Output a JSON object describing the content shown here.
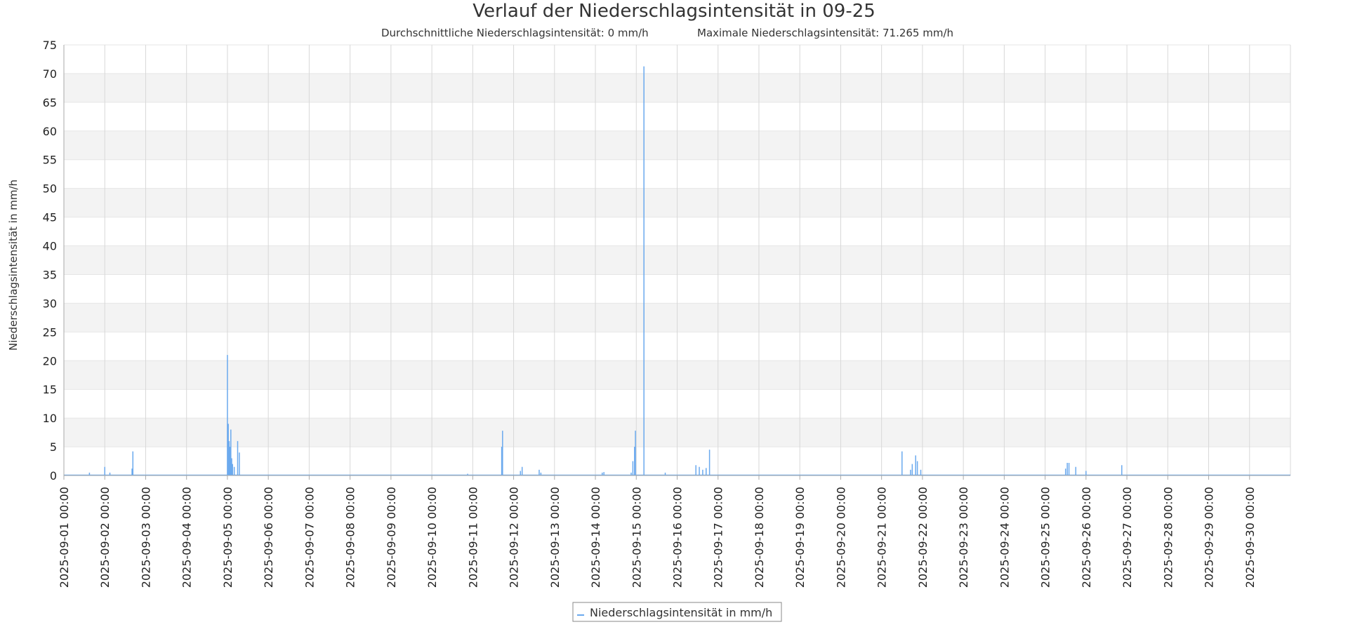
{
  "chart_data": {
    "type": "line",
    "title": "Verlauf der Niederschlagsintensität in 09-25",
    "subtitle_left": "Durchschnittliche Niederschlagsintensität: 0 mm/h",
    "subtitle_right": "Maximale Niederschlagsintensität: 71.265 mm/h",
    "ylabel": "Niederschlagsintensität in mm/h",
    "xlabel": "",
    "ylim": [
      0,
      75
    ],
    "yticks": [
      0,
      5,
      10,
      15,
      20,
      25,
      30,
      35,
      40,
      45,
      50,
      55,
      60,
      65,
      70,
      75
    ],
    "xlim": [
      "2025-09-01 00:00",
      "2025-10-01 00:00"
    ],
    "xticks": [
      "2025-09-01 00:00",
      "2025-09-02 00:00",
      "2025-09-03 00:00",
      "2025-09-04 00:00",
      "2025-09-05 00:00",
      "2025-09-06 00:00",
      "2025-09-07 00:00",
      "2025-09-08 00:00",
      "2025-09-09 00:00",
      "2025-09-10 00:00",
      "2025-09-11 00:00",
      "2025-09-12 00:00",
      "2025-09-13 00:00",
      "2025-09-14 00:00",
      "2025-09-15 00:00",
      "2025-09-16 00:00",
      "2025-09-17 00:00",
      "2025-09-18 00:00",
      "2025-09-19 00:00",
      "2025-09-20 00:00",
      "2025-09-21 00:00",
      "2025-09-22 00:00",
      "2025-09-23 00:00",
      "2025-09-24 00:00",
      "2025-09-25 00:00",
      "2025-09-26 00:00",
      "2025-09-27 00:00",
      "2025-09-28 00:00",
      "2025-09-29 00:00",
      "2025-09-30 00:00"
    ],
    "grid": true,
    "legend_position": "bottom-center",
    "colors": {
      "series": "#6aa9ee",
      "band": "#f3f3f3",
      "grid": "#d8d8d8",
      "axis": "#aaaaaa"
    },
    "series": [
      {
        "name": "Niederschlagsintensität in mm/h",
        "points": [
          [
            "2025-09-01 15:00",
            0.5
          ],
          [
            "2025-09-02 00:00",
            1.5
          ],
          [
            "2025-09-02 03:00",
            0.5
          ],
          [
            "2025-09-02 16:00",
            1.2
          ],
          [
            "2025-09-02 16:30",
            4.2
          ],
          [
            "2025-09-05 00:00",
            21.0
          ],
          [
            "2025-09-05 00:30",
            9.0
          ],
          [
            "2025-09-05 01:00",
            6.0
          ],
          [
            "2025-09-05 01:30",
            5.0
          ],
          [
            "2025-09-05 02:00",
            8.0
          ],
          [
            "2025-09-05 02:30",
            3.0
          ],
          [
            "2025-09-05 03:00",
            2.0
          ],
          [
            "2025-09-05 04:00",
            1.5
          ],
          [
            "2025-09-05 06:00",
            6.0
          ],
          [
            "2025-09-05 07:00",
            4.0
          ],
          [
            "2025-09-10 21:00",
            0.3
          ],
          [
            "2025-09-11 17:00",
            5.0
          ],
          [
            "2025-09-11 17:30",
            7.8
          ],
          [
            "2025-09-12 04:00",
            0.8
          ],
          [
            "2025-09-12 05:00",
            1.5
          ],
          [
            "2025-09-12 15:00",
            1.0
          ],
          [
            "2025-09-12 16:00",
            0.5
          ],
          [
            "2025-09-14 04:00",
            0.5
          ],
          [
            "2025-09-14 05:00",
            0.6
          ],
          [
            "2025-09-14 21:00",
            0.5
          ],
          [
            "2025-09-14 22:00",
            2.5
          ],
          [
            "2025-09-14 23:00",
            5.0
          ],
          [
            "2025-09-14 23:30",
            7.8
          ],
          [
            "2025-09-15 04:30",
            71.265
          ],
          [
            "2025-09-15 17:00",
            0.5
          ],
          [
            "2025-09-16 11:00",
            1.8
          ],
          [
            "2025-09-16 13:00",
            1.5
          ],
          [
            "2025-09-16 15:00",
            1.0
          ],
          [
            "2025-09-16 17:00",
            1.3
          ],
          [
            "2025-09-16 19:00",
            4.5
          ],
          [
            "2025-09-21 12:00",
            4.2
          ],
          [
            "2025-09-21 17:00",
            1.0
          ],
          [
            "2025-09-21 18:00",
            2.0
          ],
          [
            "2025-09-21 20:00",
            3.5
          ],
          [
            "2025-09-21 21:00",
            2.5
          ],
          [
            "2025-09-21 23:00",
            1.0
          ],
          [
            "2025-09-25 12:00",
            1.2
          ],
          [
            "2025-09-25 13:00",
            2.2
          ],
          [
            "2025-09-25 14:00",
            2.2
          ],
          [
            "2025-09-25 18:00",
            1.5
          ],
          [
            "2025-09-26 00:00",
            0.8
          ],
          [
            "2025-09-26 21:00",
            1.8
          ]
        ]
      }
    ]
  }
}
